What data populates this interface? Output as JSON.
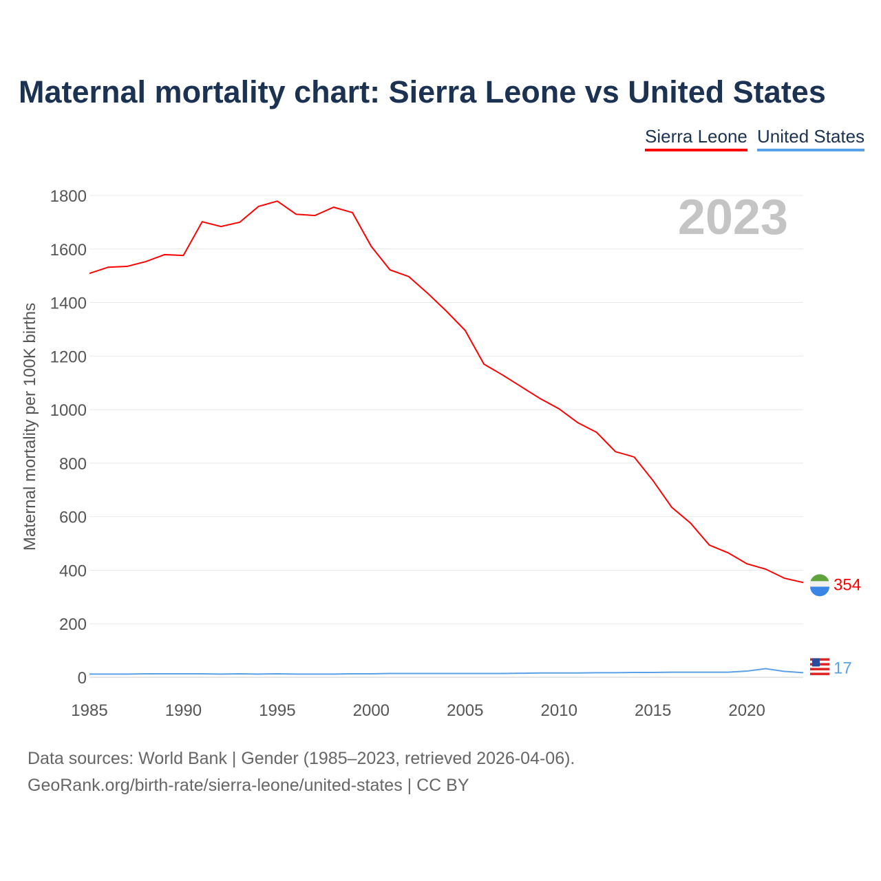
{
  "chart_data": {
    "type": "line",
    "title": "Maternal mortality chart: Sierra Leone vs United States",
    "ylabel": "Maternal mortality per 100K births",
    "xlabel": "",
    "year_watermark": "2023",
    "xlim": [
      1985,
      2023
    ],
    "ylim": [
      0,
      1800
    ],
    "xticks": [
      1985,
      1990,
      1995,
      2000,
      2005,
      2010,
      2015,
      2020
    ],
    "yticks": [
      0,
      200,
      400,
      600,
      800,
      1000,
      1200,
      1400,
      1600,
      1800
    ],
    "grid": true,
    "legend_placement": "top-right",
    "x": [
      1985,
      1986,
      1987,
      1988,
      1989,
      1990,
      1991,
      1992,
      1993,
      1994,
      1995,
      1996,
      1997,
      1998,
      1999,
      2000,
      2001,
      2002,
      2003,
      2004,
      2005,
      2006,
      2007,
      2008,
      2009,
      2010,
      2011,
      2012,
      2013,
      2014,
      2015,
      2016,
      2017,
      2018,
      2019,
      2020,
      2021,
      2022,
      2023
    ],
    "series": [
      {
        "name": "Sierra Leone",
        "color": "#ff0000",
        "end_label": "354",
        "values": [
          1509,
          1532,
          1535,
          1553,
          1579,
          1576,
          1702,
          1684,
          1700,
          1759,
          1779,
          1730,
          1725,
          1756,
          1736,
          1610,
          1522,
          1497,
          1435,
          1368,
          1296,
          1170,
          1129,
          1085,
          1041,
          1003,
          951,
          915,
          843,
          823,
          735,
          635,
          576,
          494,
          465,
          424,
          404,
          370,
          354
        ]
      },
      {
        "name": "United States",
        "color": "#5aa0e8",
        "end_label": "17",
        "values": [
          12,
          12,
          12,
          13,
          13,
          13,
          13,
          12,
          13,
          12,
          13,
          12,
          12,
          12,
          13,
          13,
          14,
          14,
          14,
          14,
          14,
          14,
          14,
          15,
          16,
          16,
          16,
          17,
          17,
          18,
          18,
          19,
          19,
          19,
          19,
          23,
          32,
          22,
          17
        ]
      }
    ]
  },
  "footer": {
    "line1": "Data sources: World Bank | Gender (1985–2023, retrieved 2026-04-06).",
    "line2": "GeoRank.org/birth-rate/sierra-leone/united-states | CC BY"
  }
}
